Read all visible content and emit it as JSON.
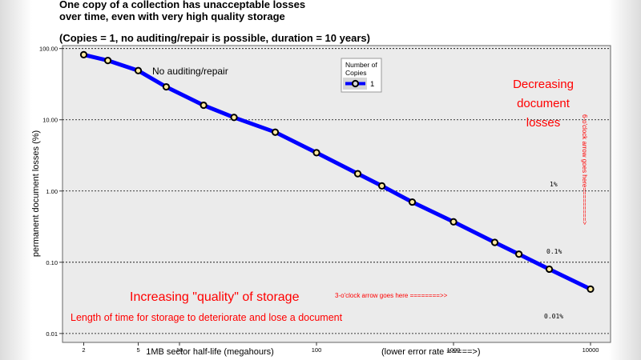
{
  "title_line1": "One copy of a collection has unacceptable losses",
  "title_line2": "over time, even with very high quality storage",
  "subtitle": "(Copies = 1, no auditing/repair is possible, duration = 10 years)",
  "chart_data": {
    "type": "line",
    "xlabel": "1MB sector half-life (megahours)",
    "ylabel": "permanent document losses (%)",
    "xscale": "log",
    "yscale": "log",
    "xlim": [
      1.4,
      14000
    ],
    "ylim": [
      0.0075,
      110
    ],
    "x_ticks": [
      2,
      5,
      10,
      100,
      1000,
      10000
    ],
    "x_tick_labels": [
      "2",
      "5",
      "10",
      "100",
      "1000",
      "10000"
    ],
    "y_ticks": [
      0.01,
      0.1,
      1,
      10,
      100
    ],
    "y_tick_labels": [
      "0.01",
      "0.10",
      "1.00",
      "10.00",
      "100.00"
    ],
    "series": [
      {
        "name": "1",
        "color": "#0000ff",
        "x": [
          2,
          3,
          5,
          8,
          15,
          25,
          50,
          100,
          200,
          300,
          500,
          1000,
          2000,
          3000,
          5000,
          10000
        ],
        "y": [
          82,
          68,
          49,
          29,
          16,
          10.8,
          6.7,
          3.45,
          1.75,
          1.18,
          0.7,
          0.37,
          0.19,
          0.13,
          0.08,
          0.042
        ]
      }
    ],
    "legend": {
      "title": "Number of\nCopies",
      "title_lines": [
        "Number of",
        "Copies"
      ],
      "placement": "top-center"
    },
    "grid": {
      "x": false,
      "y": "dotted"
    },
    "annotations": {
      "no_audit": "No auditing/repair",
      "decreasing": [
        "Decreasing",
        "document",
        "losses"
      ],
      "vertical_arrow": "6-o'clock arrow goes here=========>",
      "pct_1": "1%",
      "pct_01": "0.1%",
      "pct_001": "0.01%",
      "increasing": "Increasing \"quality\" of storage",
      "length": "Length of time for storage to deteriorate and lose a document",
      "horizontal_arrow": "3-o'clock arrow goes here ========>>",
      "lower_error": "(lower error rate =====>)"
    }
  }
}
